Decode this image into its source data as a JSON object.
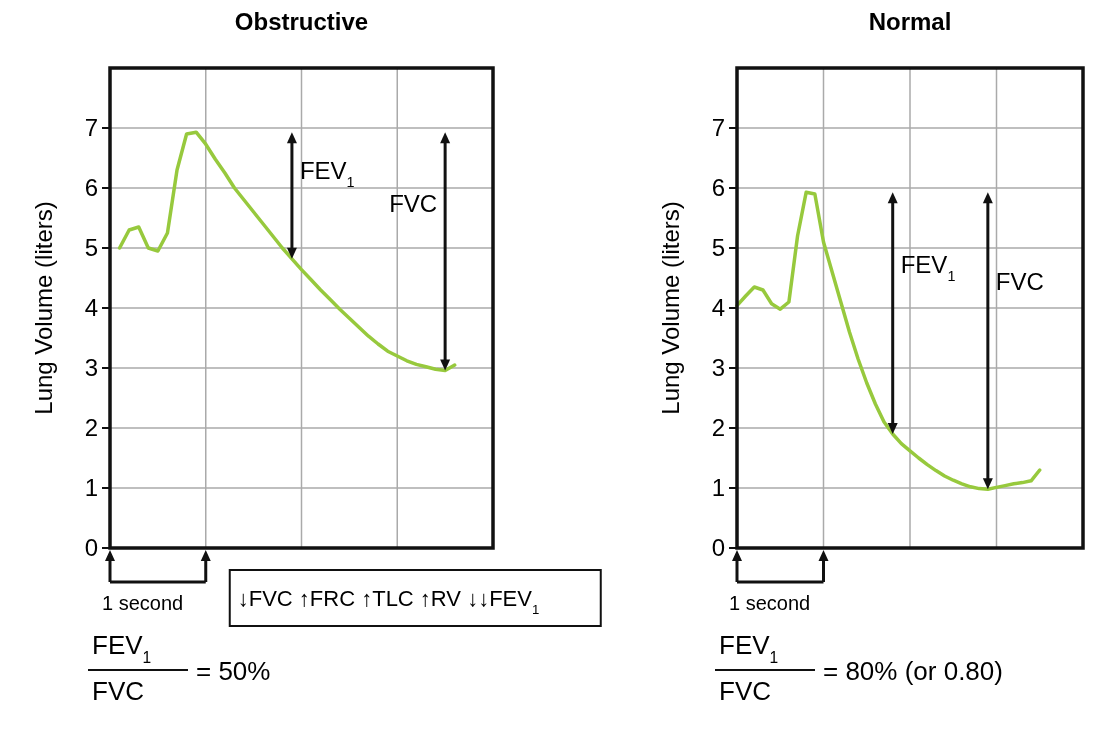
{
  "chart_data": [
    {
      "type": "line",
      "title": "Obstructive",
      "ylabel": "Lung Volume (liters)",
      "categories": [
        null,
        null,
        null,
        null,
        null,
        null,
        null,
        null,
        null,
        null,
        null,
        null,
        null,
        null,
        null,
        null,
        null,
        null,
        null,
        null,
        null,
        null,
        null,
        null,
        null,
        null,
        null,
        null,
        null,
        null,
        null,
        null,
        null,
        null,
        null,
        null,
        null,
        null,
        null,
        null,
        null
      ],
      "ylim": [
        0,
        8
      ],
      "yticks": [
        0,
        1,
        2,
        3,
        4,
        5,
        6,
        7
      ],
      "grid": true,
      "series": [
        {
          "color": "#97c93d",
          "values": [
            null,
            5.0,
            5.3,
            5.35,
            5.0,
            4.95,
            5.25,
            6.3,
            6.9,
            6.93,
            6.73,
            6.48,
            6.25,
            6.0,
            5.8,
            5.6,
            5.4,
            5.2,
            5.0,
            4.82,
            4.64,
            4.47,
            4.3,
            4.14,
            3.98,
            3.83,
            3.68,
            3.53,
            3.4,
            3.28,
            3.2,
            3.12,
            3.06,
            3.02,
            2.98,
            2.96,
            3.05,
            null,
            null,
            null,
            null
          ]
        }
      ],
      "annotations": [
        "FEV$_{1}$",
        "FVC",
        "1 second",
        "↓FVC ↑FRC ↑TLC ↑RV ↓↓FEV$_{1}$",
        "FEV$_{1}$",
        "FVC",
        "= 50%"
      ]
    },
    {
      "type": "line",
      "title": "Normal",
      "ylabel": "Lung Volume (liters)",
      "categories": [
        null,
        null,
        null,
        null,
        null,
        null,
        null,
        null,
        null,
        null,
        null,
        null,
        null,
        null,
        null,
        null,
        null,
        null,
        null,
        null,
        null,
        null,
        null,
        null,
        null,
        null,
        null,
        null,
        null,
        null,
        null,
        null,
        null,
        null,
        null,
        null,
        null,
        null,
        null,
        null,
        null
      ],
      "ylim": [
        0,
        8
      ],
      "yticks": [
        0,
        1,
        2,
        3,
        4,
        5,
        6,
        7
      ],
      "grid": true,
      "series": [
        {
          "color": "#97c93d",
          "values": [
            4.04,
            4.2,
            4.35,
            4.3,
            4.07,
            3.98,
            4.1,
            5.2,
            5.93,
            5.9,
            5.1,
            4.6,
            4.1,
            3.6,
            3.15,
            2.75,
            2.4,
            2.1,
            1.9,
            1.74,
            1.62,
            1.5,
            1.39,
            1.29,
            1.2,
            1.13,
            1.07,
            1.02,
            0.99,
            0.98,
            1.01,
            1.04,
            1.07,
            1.09,
            1.12,
            1.3,
            null,
            null,
            null,
            null,
            null
          ]
        }
      ],
      "annotations": [
        "FEV$_{1}$",
        "FVC",
        "1 second",
        "FEV$_{1}$",
        "FVC",
        "= 80% (or 0.80)"
      ]
    }
  ]
}
